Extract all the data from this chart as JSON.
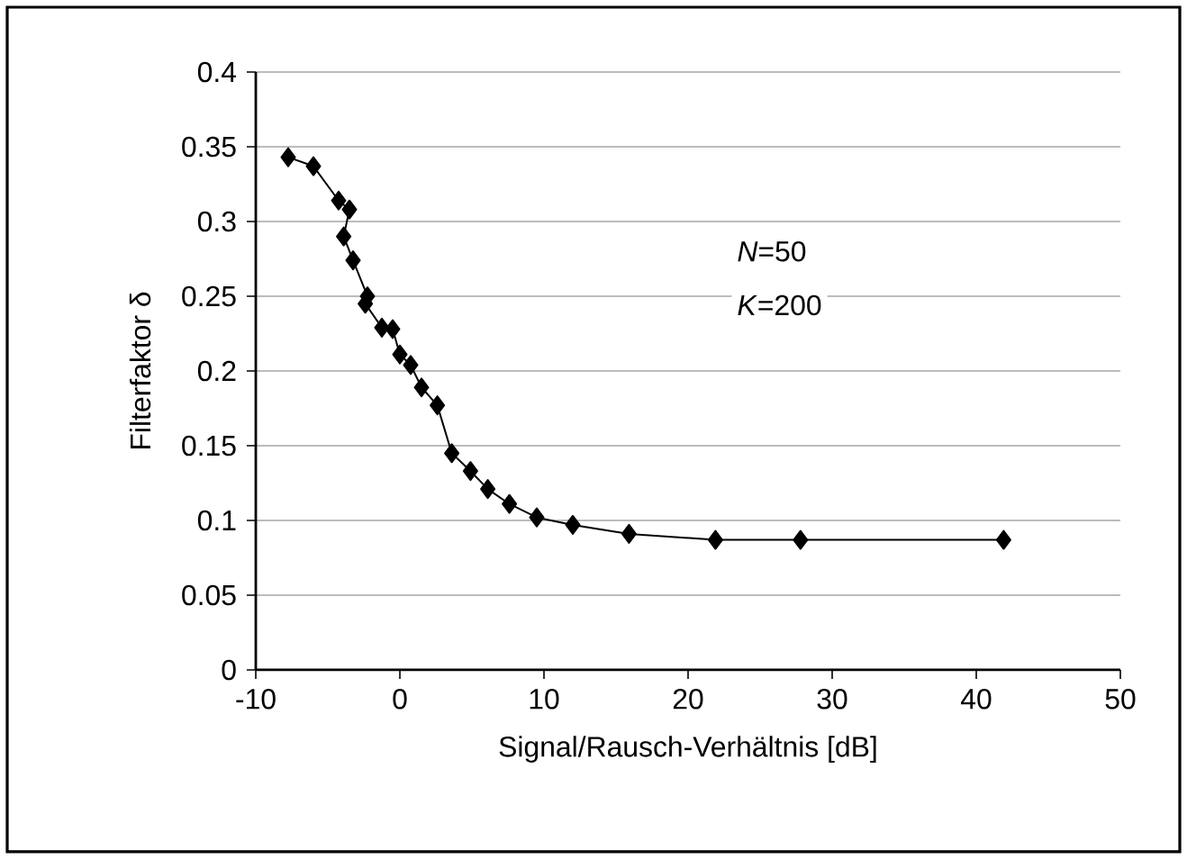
{
  "chart_data": {
    "type": "line",
    "xlabel": "Signal/Rausch-Verhältnis [dB]",
    "ylabel": "Filterfaktor δ",
    "annotations": [
      "*N*=50",
      "*K*=200"
    ],
    "x": [
      -7.75,
      -6,
      -4.25,
      -3.5,
      -3.9,
      -3.25,
      -2.25,
      -2.4,
      -1.25,
      -0.5,
      0,
      0.75,
      1.5,
      2.6,
      3.6,
      4.9,
      6.1,
      7.6,
      9.5,
      12,
      15.9,
      21.9,
      27.8,
      41.9
    ],
    "series": [
      {
        "color": "#000000",
        "values": [
          0.343,
          0.337,
          0.314,
          0.308,
          0.29,
          0.274,
          0.25,
          0.245,
          0.229,
          0.228,
          0.211,
          0.204,
          0.189,
          0.177,
          0.145,
          0.133,
          0.121,
          0.111,
          0.102,
          0.097,
          0.091,
          0.087,
          0.087,
          0.087
        ]
      }
    ],
    "xlim": [
      -10,
      50
    ],
    "xticks": [
      -10,
      0,
      10,
      20,
      30,
      40,
      50
    ],
    "ylim": [
      0,
      0.4
    ],
    "yticks": [
      0,
      0.05,
      0.1,
      0.15,
      0.2,
      0.25,
      0.3,
      0.35,
      0.4
    ],
    "grid": "y",
    "marker": "diamond",
    "line_style": "solid"
  }
}
